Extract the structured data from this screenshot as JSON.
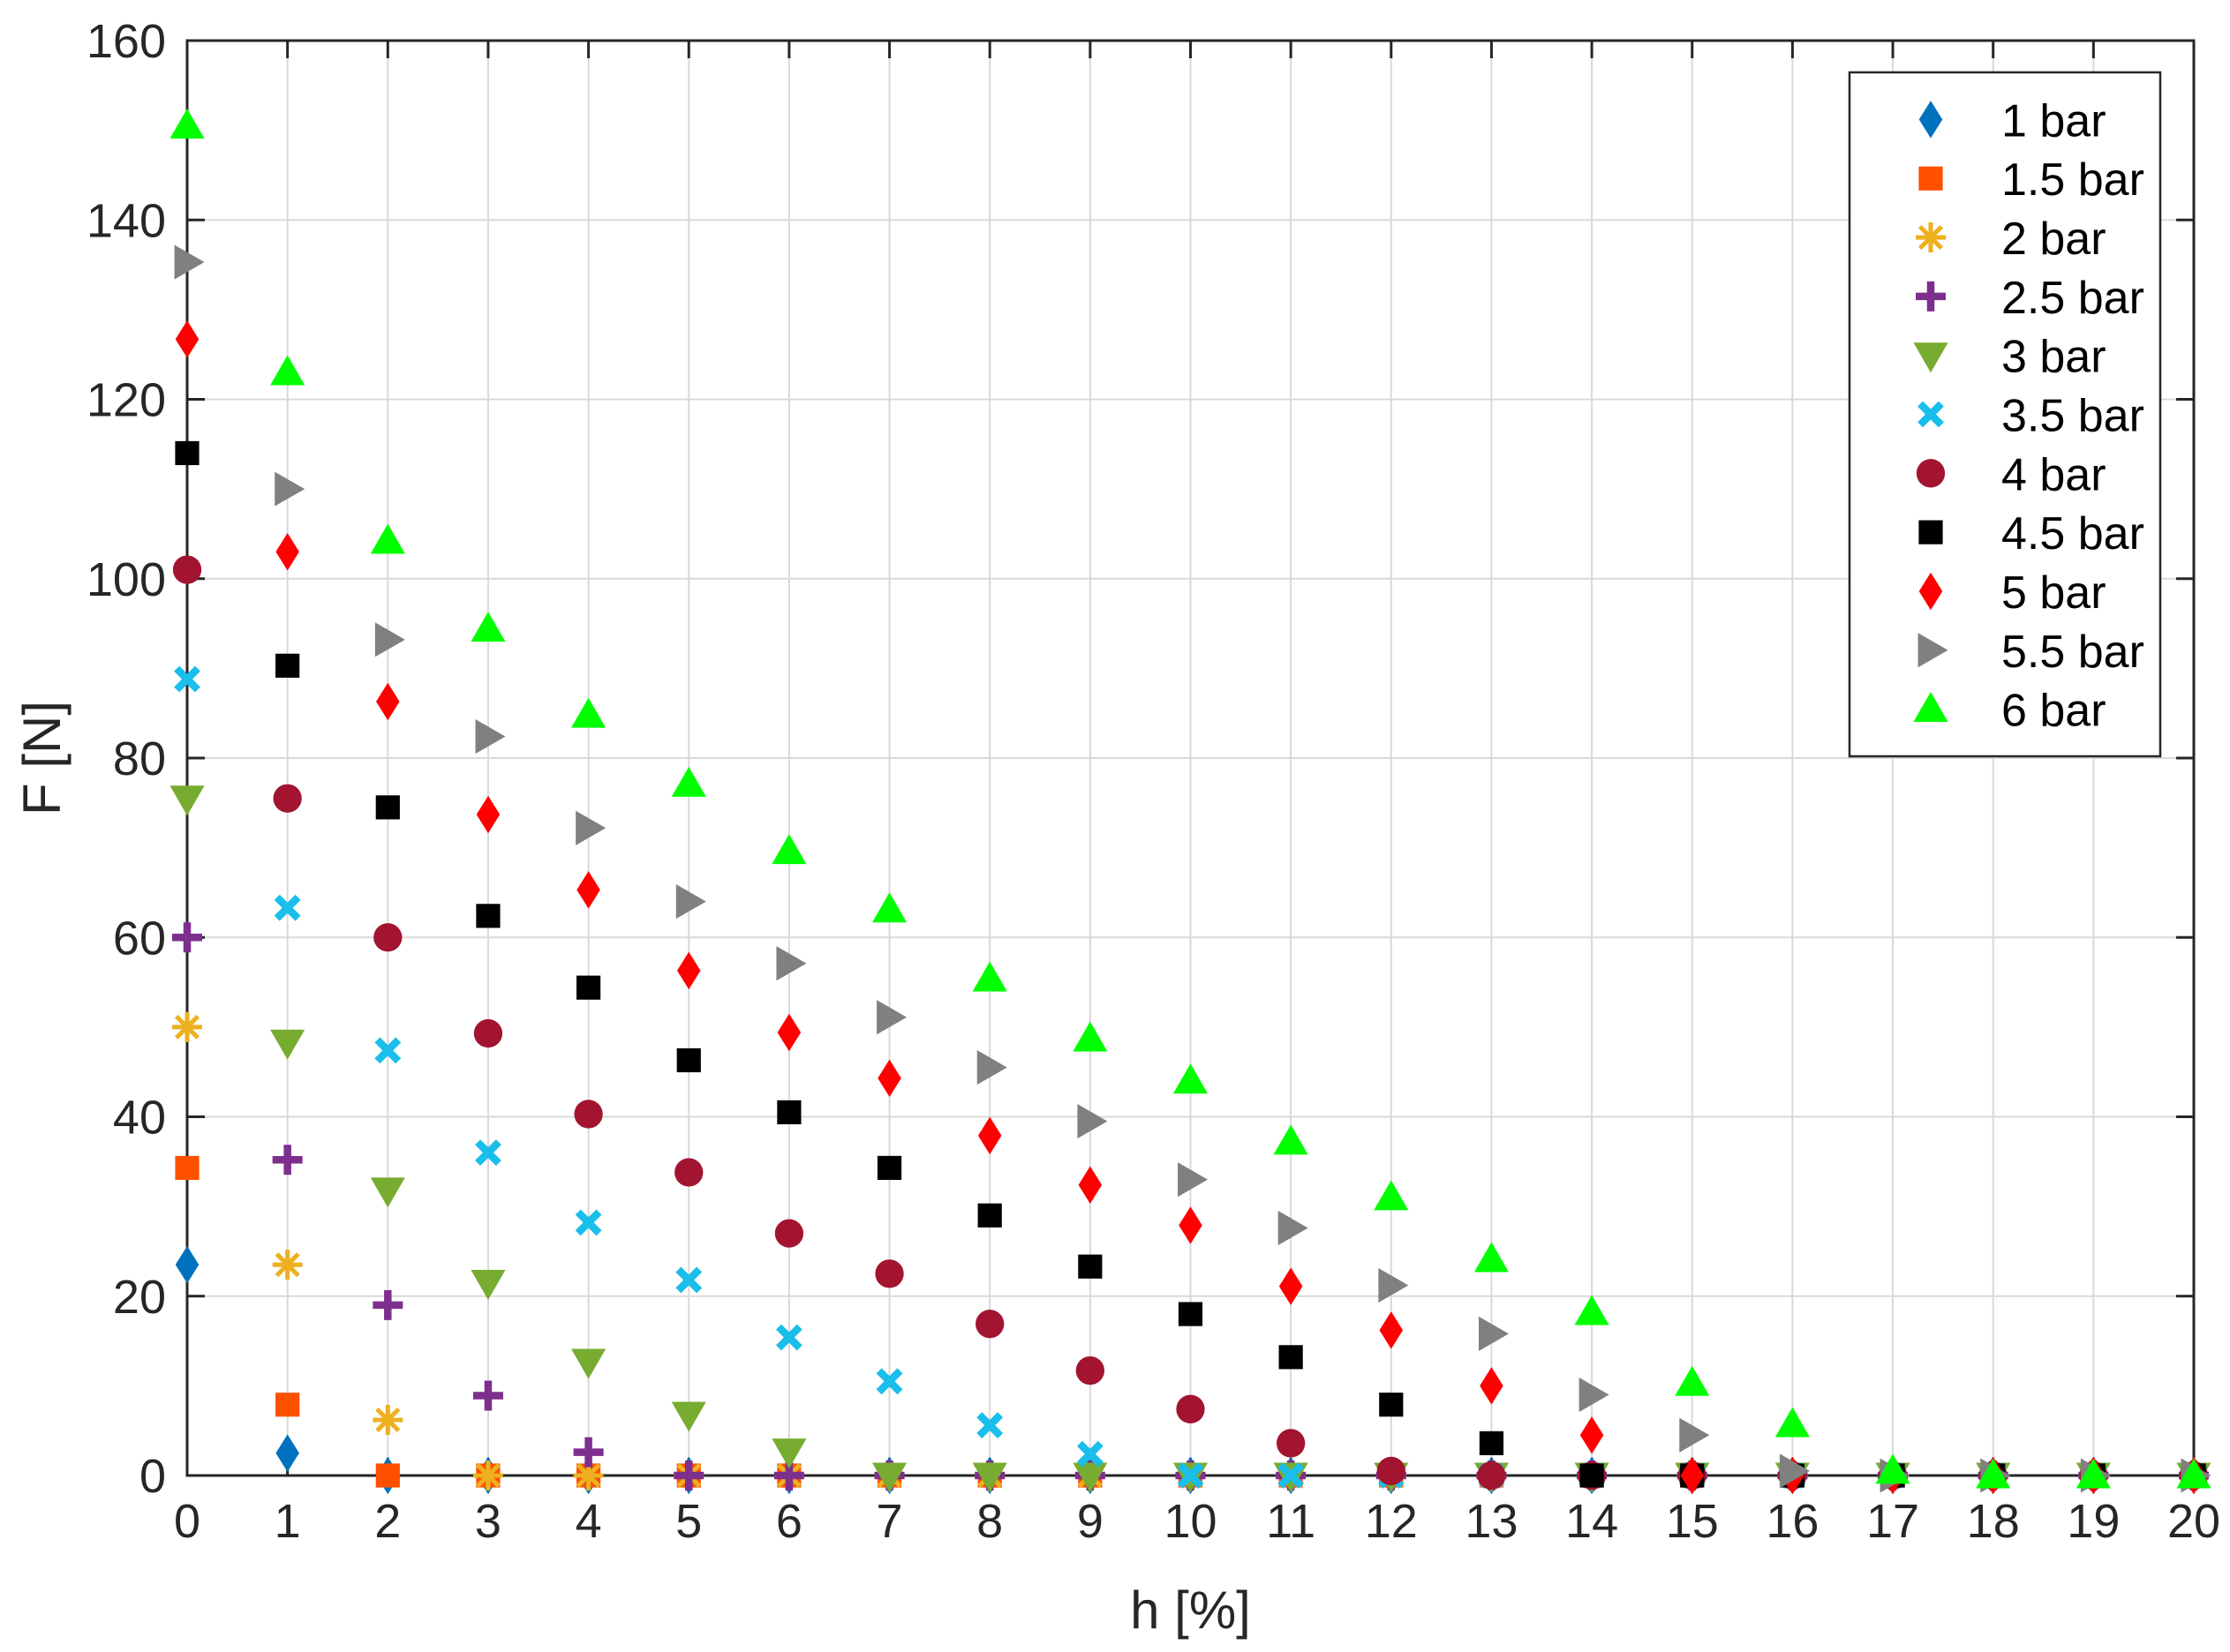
{
  "chart_data": {
    "type": "scatter",
    "title": "",
    "xlabel": "h [%]",
    "ylabel": "F [N]",
    "xlim": [
      0,
      20
    ],
    "ylim": [
      0,
      160
    ],
    "x_ticks": [
      "0",
      "1",
      "2",
      "3",
      "4",
      "5",
      "6",
      "7",
      "8",
      "9",
      "10",
      "11",
      "12",
      "13",
      "14",
      "15",
      "16",
      "17",
      "18",
      "19",
      "20"
    ],
    "y_ticks": [
      "0",
      "20",
      "40",
      "60",
      "80",
      "100",
      "120",
      "140",
      "160"
    ],
    "grid": true,
    "legend_position": "top-right",
    "x": [
      0,
      1,
      2,
      3,
      4,
      5,
      6,
      7,
      8,
      9,
      10,
      11,
      12,
      13,
      14,
      15,
      16,
      17,
      18,
      19,
      20
    ],
    "series": [
      {
        "name": "1 bar",
        "marker": "diamond",
        "color": "#0072BD",
        "values": [
          23.5,
          2.5,
          0,
          0,
          0,
          0,
          0,
          0,
          0,
          0,
          0,
          0,
          0,
          0,
          0,
          0,
          0,
          0,
          0,
          0,
          0
        ]
      },
      {
        "name": "1.5 bar",
        "marker": "square",
        "color": "#FF5000",
        "values": [
          34.3,
          7.9,
          0,
          0,
          0,
          0,
          0,
          0,
          0,
          0,
          0,
          0,
          0,
          0,
          0,
          0,
          0,
          0,
          0,
          0,
          0
        ]
      },
      {
        "name": "2 bar",
        "marker": "asterisk",
        "color": "#EDB120",
        "values": [
          50,
          23.5,
          6.2,
          0,
          0,
          0,
          0,
          0,
          0,
          0,
          0,
          0,
          0,
          0,
          0,
          0,
          0,
          0,
          0,
          0,
          0
        ]
      },
      {
        "name": "2.5 bar",
        "marker": "plus",
        "color": "#7E2F8E",
        "values": [
          60,
          35.2,
          19,
          8.9,
          2.6,
          0,
          0,
          0,
          0,
          0,
          0,
          0,
          0,
          0,
          0,
          0,
          0,
          0,
          0,
          0,
          0
        ]
      },
      {
        "name": "3 bar",
        "marker": "triangle-down",
        "color": "#77AC30",
        "values": [
          75.5,
          48.3,
          31.8,
          21.5,
          12.7,
          6.8,
          2.7,
          0,
          0,
          0,
          0,
          0,
          0,
          0,
          0,
          0,
          0,
          0,
          0,
          0,
          0
        ]
      },
      {
        "name": "3.5 bar",
        "marker": "x",
        "color": "#19BEEB",
        "values": [
          88.8,
          63.3,
          47.4,
          36,
          28.2,
          21.8,
          15.4,
          10.5,
          5.6,
          2.4,
          0,
          0,
          0,
          0,
          0,
          0,
          0,
          0,
          0,
          0,
          0
        ]
      },
      {
        "name": "4 bar",
        "marker": "circle",
        "color": "#A2142F",
        "values": [
          101,
          75.5,
          60,
          49.3,
          40.3,
          33.8,
          27,
          22.5,
          16.9,
          11.7,
          7.4,
          3.6,
          0.5,
          0,
          0,
          0,
          0,
          0,
          0,
          0,
          0
        ]
      },
      {
        "name": "4.5 bar",
        "marker": "square",
        "color": "#000000",
        "values": [
          114,
          90.3,
          74.5,
          62.4,
          54.4,
          46.3,
          40.5,
          34.3,
          29,
          23.3,
          18,
          13.2,
          7.9,
          3.6,
          0,
          0,
          0,
          0,
          0,
          0,
          0
        ]
      },
      {
        "name": "5 bar",
        "marker": "diamond",
        "color": "#FF0000",
        "values": [
          126.7,
          103,
          86.3,
          73.7,
          65.3,
          56.3,
          49.4,
          44.3,
          37.9,
          32.4,
          27.9,
          21.1,
          16.2,
          10,
          4.5,
          0,
          0,
          0,
          0,
          0,
          0
        ]
      },
      {
        "name": "5.5 bar",
        "marker": "triangle-right",
        "color": "#808080",
        "values": [
          135.3,
          110,
          93.2,
          82.4,
          72.2,
          64,
          57.1,
          51.1,
          45.5,
          39.5,
          33,
          27.6,
          21.2,
          15.8,
          9,
          4.5,
          0.5,
          0,
          0,
          0,
          0
        ]
      },
      {
        "name": "6 bar",
        "marker": "triangle-up",
        "color": "#00FF00",
        "values": [
          150.5,
          123,
          104.2,
          94.4,
          84.8,
          77.1,
          69.6,
          63.1,
          55.4,
          48.7,
          44,
          37.2,
          31,
          24.1,
          18.2,
          10.3,
          5.7,
          0.5,
          0,
          0,
          0
        ]
      }
    ]
  }
}
